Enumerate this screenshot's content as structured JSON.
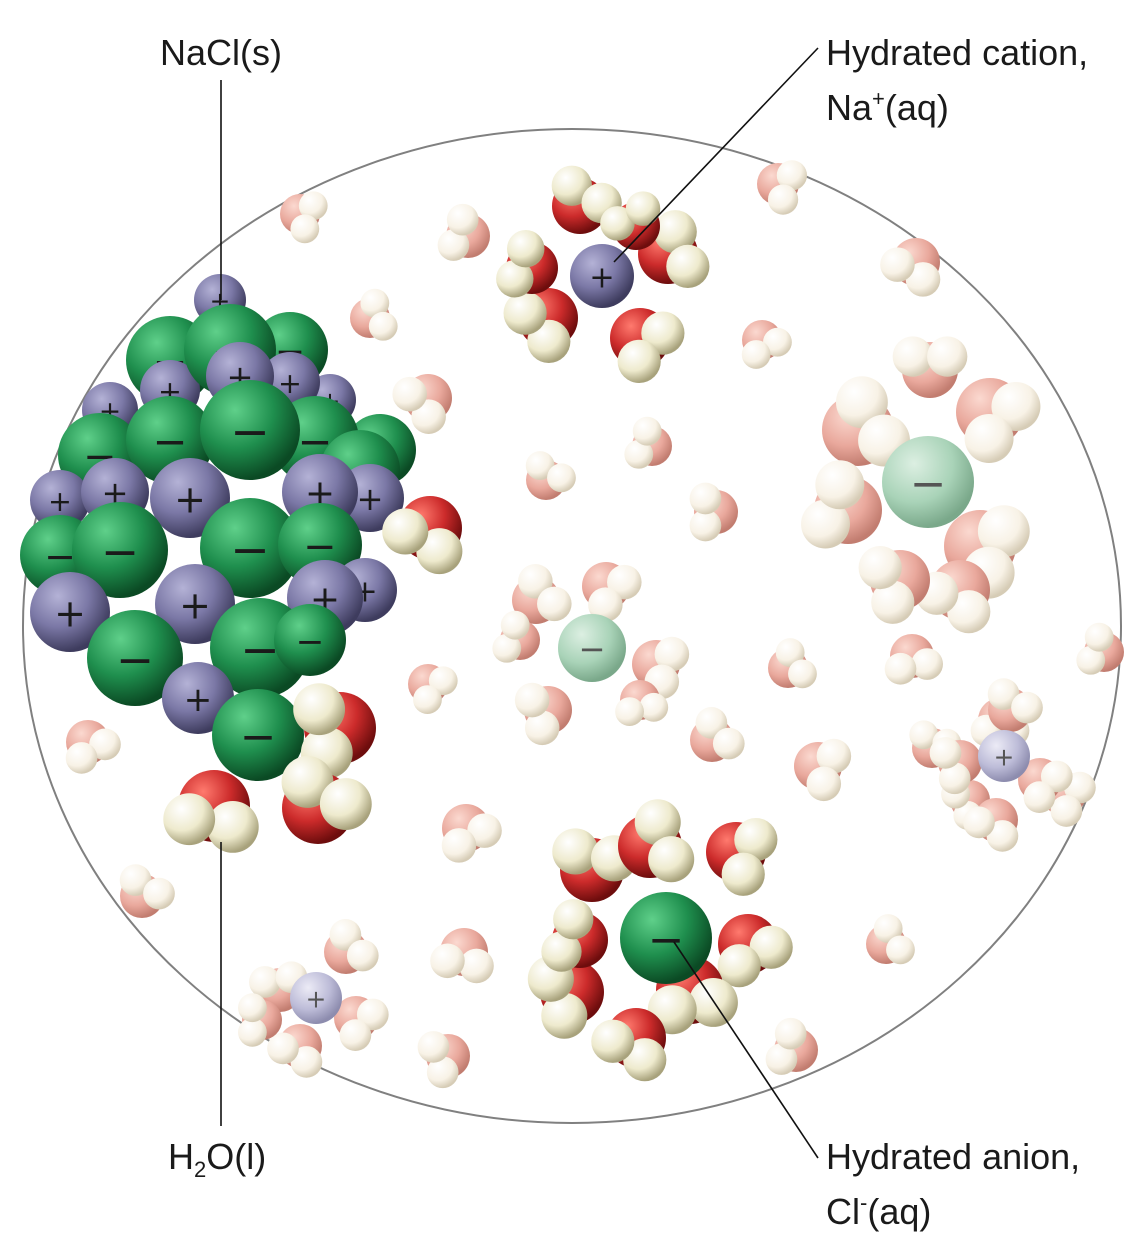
{
  "labels": {
    "nacl": {
      "text": "NaCl(s)"
    },
    "cation": {
      "line1": "Hydrated cation,",
      "line2_pre": "Na",
      "line2_sup": "+",
      "line2_post": "(aq)"
    },
    "water": {
      "pre": "H",
      "sub": "2",
      "post": "O(l)"
    },
    "anion": {
      "line1": "Hydrated anion,",
      "line2_pre": "Cl",
      "line2_sup": "-",
      "line2_post": "(aq)"
    }
  },
  "ion_signs": {
    "cation": "+",
    "anion": "−"
  },
  "colors": {
    "chloride": "#1f8f4e",
    "sodium": "#7b78a6",
    "oxygen": "#cc2b2b",
    "hydrogen": "#eeeacd",
    "background_water_oxygen": "#e9a89c",
    "background_water_hydrogen": "#f8f2e6",
    "hydrated_chloride": "#a9d3b8",
    "hydrated_sodium": "#bdbcd8",
    "outline": "#808080",
    "leader": "#111111"
  }
}
